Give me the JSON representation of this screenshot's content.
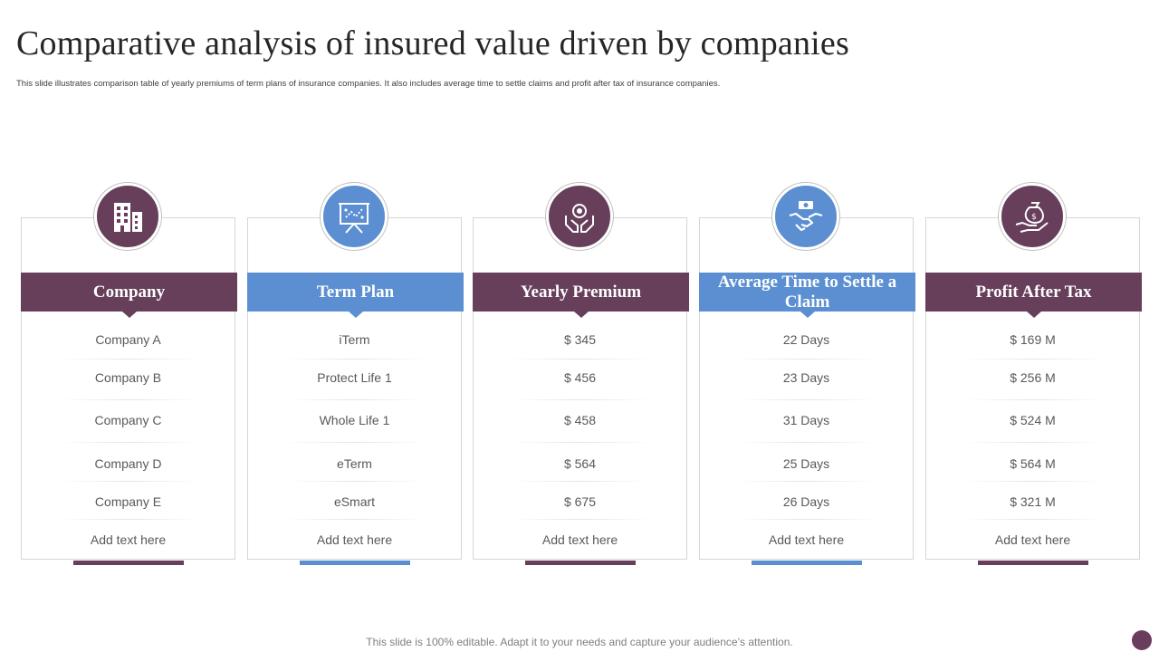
{
  "title": "Comparative analysis of insured value driven by companies",
  "subtitle": "This slide illustrates comparison table of yearly premiums of term plans of insurance companies. It also includes average time to settle claims and profit after tax of insurance companies.",
  "colors": {
    "plum": "#673f5b",
    "blue": "#5b8fd1"
  },
  "columns": [
    {
      "header": "Company",
      "icon": "building-icon",
      "rows": [
        "Company A",
        "Company B",
        "Company C",
        "Company D",
        "Company E",
        "Add text here"
      ]
    },
    {
      "header": "Term Plan",
      "icon": "presentation-board-icon",
      "rows": [
        "iTerm",
        "Protect Life 1",
        "Whole Life 1",
        "eTerm",
        "eSmart",
        "Add text here"
      ]
    },
    {
      "header": "Yearly Premium",
      "icon": "hands-badge-icon",
      "rows": [
        "$ 345",
        "$ 456",
        "$ 458",
        "$ 564",
        "$ 675",
        "Add text here"
      ]
    },
    {
      "header": "Average Time to Settle a Claim",
      "icon": "handshake-money-icon",
      "rows": [
        "22 Days",
        "23 Days",
        "31 Days",
        "25 Days",
        "26 Days",
        "Add text here"
      ]
    },
    {
      "header": "Profit After Tax",
      "icon": "money-bag-hand-icon",
      "rows": [
        "$ 169 M",
        "$ 256 M",
        "$ 524 M",
        "$ 564 M",
        "$ 321 M",
        "Add text here"
      ]
    }
  ],
  "footer": "This slide is 100% editable. Adapt it to your needs and capture your audience’s attention."
}
